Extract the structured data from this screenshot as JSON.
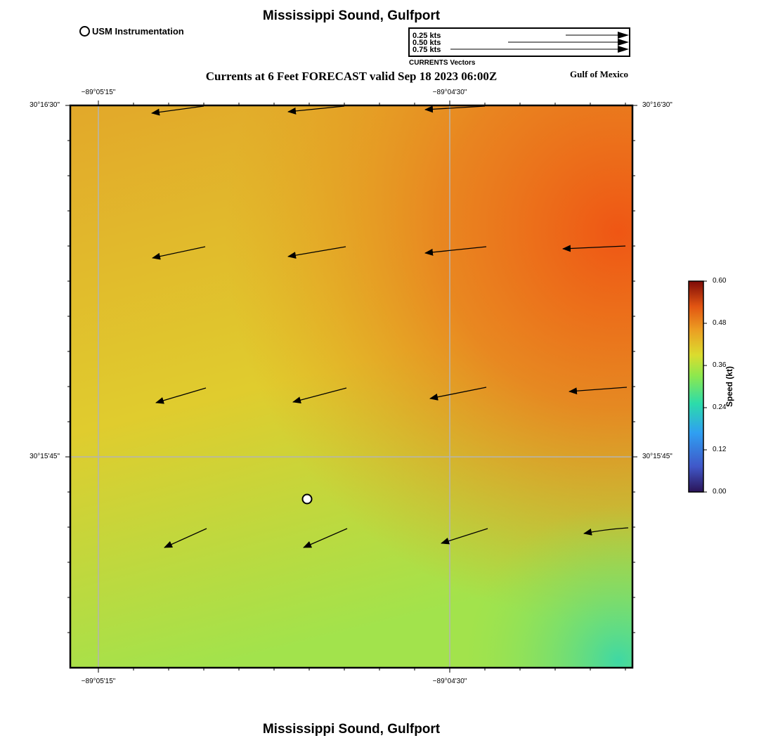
{
  "title_top": "Mississippi Sound, Gulfport",
  "title_bottom": "Mississippi Sound, Gulfport",
  "subtitle": "Currents at 6 Feet FORECAST valid Sep 18 2023 06:00Z",
  "region_label": "Gulf of Mexico",
  "station_legend": {
    "label": "USM Instrumentation"
  },
  "vector_legend": {
    "caption": "CURRENTS Vectors",
    "entries": [
      "0.25 kts",
      "0.50 kts",
      "0.75 kts"
    ]
  },
  "axes": {
    "top_ticks": [
      "−89°05'15\"",
      "−89°04'30\""
    ],
    "bottom_ticks": [
      "−89°05'15\"",
      "−89°04'30\""
    ],
    "left_ticks": [
      "30°16'30\"",
      "30°15'45\""
    ],
    "right_ticks": [
      "30°16'30\"",
      "30°15'45\""
    ]
  },
  "colorbar": {
    "title": "Speed (kt)",
    "ticks": [
      "0.60",
      "0.48",
      "0.36",
      "0.24",
      "0.12",
      "0.00"
    ],
    "range": [
      0.0,
      0.6
    ]
  },
  "colors": {
    "high_speed": "#ef5a16",
    "mid_speed": "#e2c82c",
    "low_speed": "#a9e44c",
    "min_corner": "#44d99e",
    "grid": "#b4b4b4"
  },
  "map_labels": {
    "station_marker": "usm-instrumentation-station"
  }
}
